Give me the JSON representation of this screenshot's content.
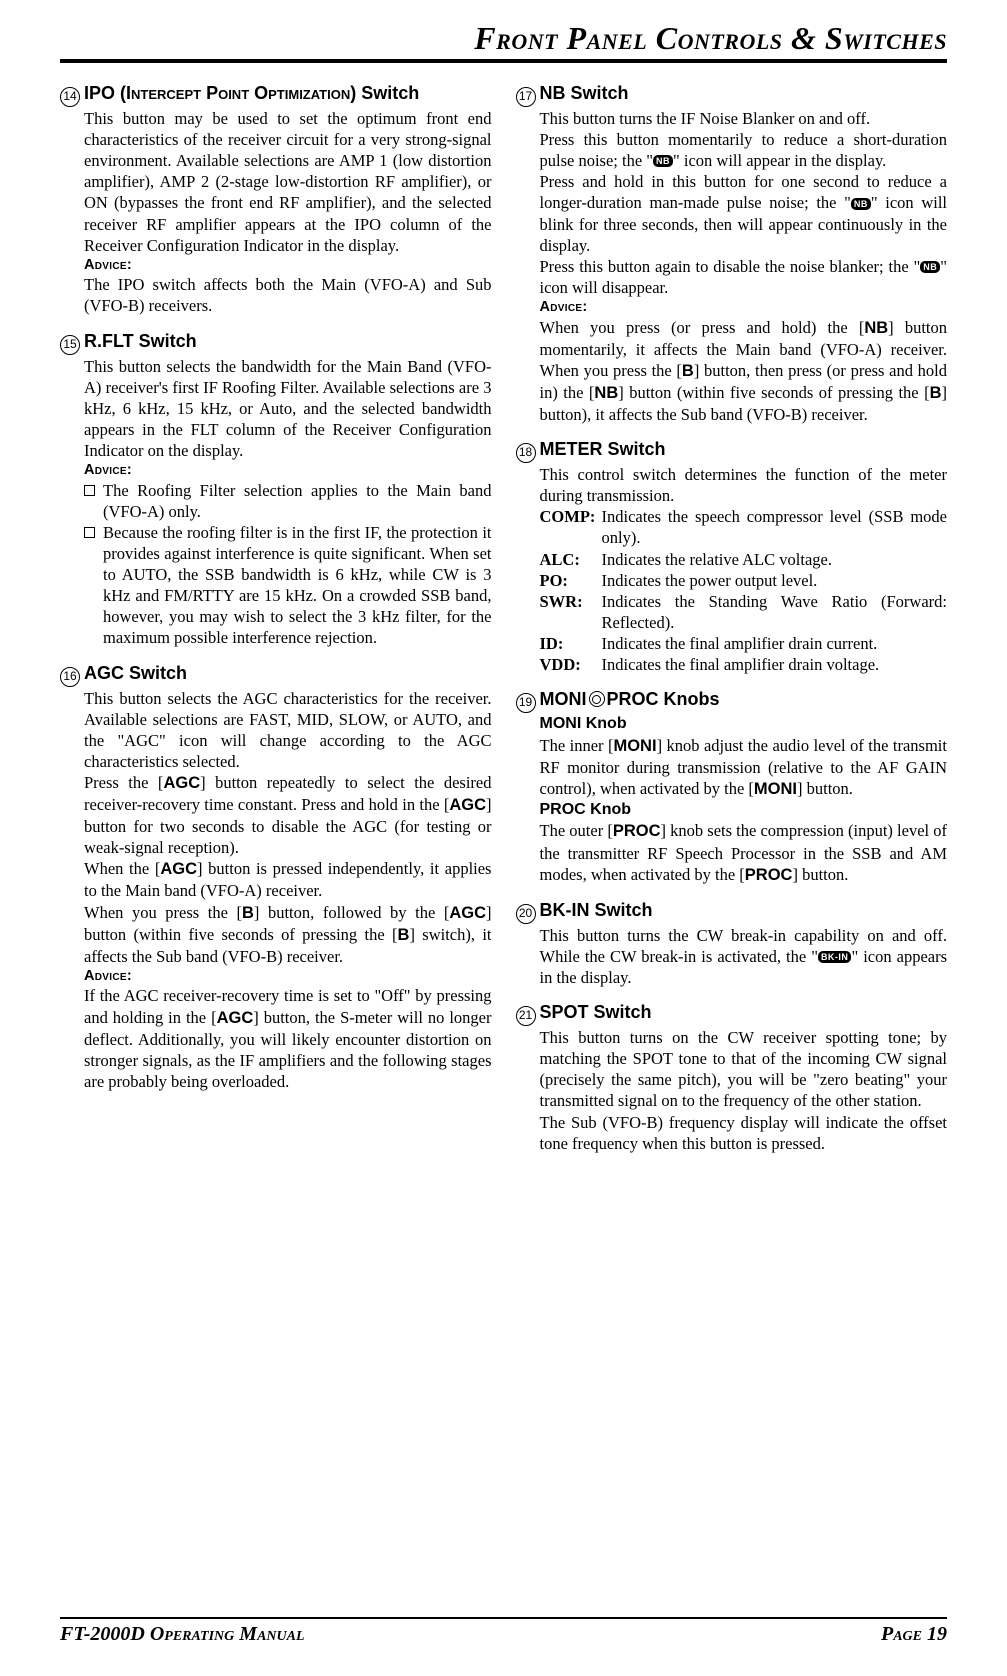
{
  "header": {
    "title": "Front Panel Controls & Switches"
  },
  "footer": {
    "left": "FT-2000D Operating Manual",
    "right": "Page 19"
  },
  "advice_label": "Advice:",
  "badges": {
    "nb": "NB",
    "bkin": "BK-IN"
  },
  "s14": {
    "num": "14",
    "title_a": "IPO (",
    "title_b": "Intercept Point Optimization",
    "title_c": ") Switch",
    "p1": "This button may be used to set the optimum front end characteristics of the receiver circuit for a very strong-signal environment. Available selections are AMP 1 (low distortion amplifier), AMP 2 (2-stage low-distortion RF amplifier), or ON (bypasses the front end RF amplifier), and the selected receiver RF amplifier appears at the IPO column of the Receiver Configuration Indicator in the display.",
    "p2": "The IPO switch affects both the Main (VFO-A) and Sub (VFO-B) receivers."
  },
  "s15": {
    "num": "15",
    "title": "R.FLT Switch",
    "p1": "This button selects the bandwidth for the Main Band (VFO-A) receiver's first IF Roofing Filter. Available selections are 3 kHz, 6 kHz, 15 kHz, or Auto, and the selected bandwidth appears in the FLT column of the Receiver Configuration Indicator on the display.",
    "b1": "The Roofing Filter selection applies to the Main band (VFO-A) only.",
    "b2": "Because the roofing filter is in the first IF, the protection it provides against interference is quite significant. When set to AUTO, the SSB bandwidth is 6 kHz, while CW is 3 kHz and FM/RTTY are 15 kHz. On a crowded SSB band, however, you may wish to select the 3 kHz filter, for the maximum possible interference rejection."
  },
  "s16": {
    "num": "16",
    "title": "AGC Switch",
    "p1a": "This button selects the AGC characteristics for the receiver. Available selections are FAST, MID, SLOW, or AUTO, and the \"AGC\" icon will change according to the AGC characteristics selected.",
    "p1b_a": "Press the [",
    "p1b_b": "] button repeatedly to select the desired receiver-recovery time constant. Press and hold in the [",
    "p1b_c": "] button for two seconds to disable the AGC (for testing or weak-signal reception).",
    "p1c_a": "When the [",
    "p1c_b": "] button is pressed independently, it applies to the Main band (VFO-A) receiver.",
    "p1d_a": "When you press the [",
    "p1d_b": "] button, followed by the [",
    "p1d_c": "] button (within five seconds of pressing the [",
    "p1d_d": "] switch), it affects the Sub band (VFO-B) receiver.",
    "p2_a": "If the AGC receiver-recovery time is set to \"Off\" by pressing and holding in the [",
    "p2_b": "] button, the S-meter will no longer deflect. Additionally, you will likely encounter distortion on stronger signals, as the IF amplifiers and the following stages are probably being overloaded.",
    "agc": "AGC",
    "b": "B"
  },
  "s17": {
    "num": "17",
    "title": "NB Switch",
    "p1": "This button turns the IF Noise Blanker on and off.",
    "p2a": "Press this button momentarily to reduce a short-duration pulse noise; the \"",
    "p2b": "\" icon will appear in the display.",
    "p3a": "Press and hold in this button for one second to reduce a longer-duration man-made pulse noise; the \"",
    "p3b": "\" icon will blink for three seconds, then will appear continuously in the display.",
    "p4a": "Press this button again to disable the noise blanker; the \"",
    "p4b": "\" icon will disappear.",
    "p5a": "When you press (or press and hold) the [",
    "p5b": "] button momentarily, it affects the Main band (VFO-A) receiver. When you press the [",
    "p5c": "] button, then press (or press and hold in) the [",
    "p5d": "] button (within five seconds of pressing the [",
    "p5e": "] button), it affects the Sub band (VFO-B) receiver.",
    "nb": "NB",
    "b": "B"
  },
  "s18": {
    "num": "18",
    "title": "METER Switch",
    "p1": "This control switch determines the function of the meter during transmission.",
    "rows": [
      {
        "k": "COMP:",
        "v": "Indicates the speech compressor level (SSB mode only)."
      },
      {
        "k": "ALC:",
        "v": "Indicates the relative ALC voltage."
      },
      {
        "k": "PO:",
        "v": "Indicates the power output level."
      },
      {
        "k": "SWR:",
        "v": "Indicates the Standing Wave Ratio (Forward: Reflected)."
      },
      {
        "k": "ID:",
        "v": "Indicates the final amplifier drain current."
      },
      {
        "k": "VDD:",
        "v": "Indicates the final amplifier drain voltage."
      }
    ]
  },
  "s19": {
    "num": "19",
    "title_a": "MONI",
    "title_b": "PROC Knobs",
    "sub1": "MONI Knob",
    "p1a": "The inner [",
    "p1b": "] knob adjust the audio level of the transmit RF monitor during transmission (relative to the AF GAIN control), when activated by the [",
    "p1c": "] button.",
    "sub2": "PROC Knob",
    "p2a": "The outer [",
    "p2b": "] knob sets the compression (input) level of the transmitter RF Speech Processor in the SSB and AM modes, when activated by the [",
    "p2c": "] button.",
    "moni": "MONI",
    "proc": "PROC"
  },
  "s20": {
    "num": "20",
    "title": "BK-IN Switch",
    "p1a": "This button turns the CW break-in capability on and off. While the CW break-in is activated, the \"",
    "p1b": "\" icon appears in the display."
  },
  "s21": {
    "num": "21",
    "title": "SPOT Switch",
    "p1": "This button turns on the CW receiver spotting tone; by matching the SPOT tone to that of the incoming CW signal (precisely the same pitch), you will be \"zero beating\" your transmitted signal on to the frequency of the other station.",
    "p2": "The Sub (VFO-B) frequency display will indicate the offset tone frequency when this button is pressed."
  }
}
